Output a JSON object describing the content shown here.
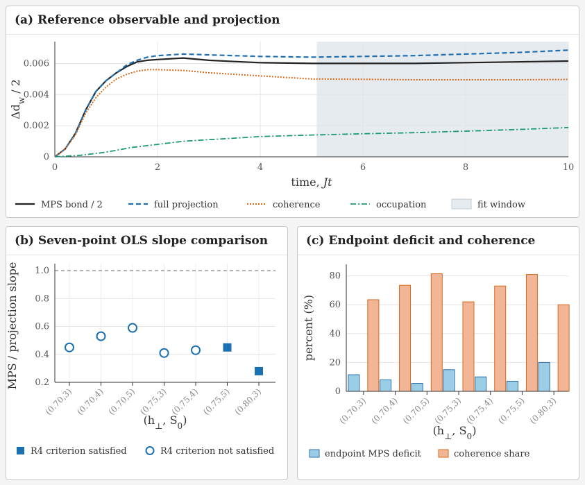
{
  "panels": {
    "a": {
      "title": "(a) Reference observable and projection"
    },
    "b": {
      "title": "(b) Seven-point OLS slope comparison"
    },
    "c": {
      "title": "(c) Endpoint deficit and coherence"
    }
  },
  "colors": {
    "mps": "#222222",
    "full": "#1f6fb0",
    "coherence": "#d46a1c",
    "occupation": "#1a9a72",
    "fit": "#e6ebef",
    "marker": "#1a70b0",
    "bar_blue": "#9ccde6",
    "bar_blue_edge": "#2c6fa6",
    "bar_orange": "#f2b596",
    "bar_orange_edge": "#d46a1c"
  },
  "chart_data": [
    {
      "type": "line",
      "title": "",
      "xlabel": "time, Jt",
      "ylabel": "Δd_w / 2",
      "xlim": [
        0,
        10
      ],
      "ylim": [
        0,
        0.0074
      ],
      "xticks": [
        "0",
        "2",
        "4",
        "6",
        "8",
        "10"
      ],
      "yticks": [
        "0",
        "0.002",
        "0.004",
        "0.006"
      ],
      "fit_window": [
        5.1,
        10
      ],
      "legend": [
        "MPS bond / 2",
        "full projection",
        "coherence",
        "occupation",
        "fit window"
      ],
      "series": [
        {
          "name": "MPS bond / 2",
          "x": [
            0,
            0.2,
            0.4,
            0.6,
            0.8,
            1.0,
            1.2,
            1.4,
            1.6,
            1.8,
            2.0,
            2.5,
            3.0,
            3.5,
            4.0,
            5.0,
            6.0,
            7.0,
            8.0,
            9.0,
            10.0
          ],
          "y": [
            0,
            0.0005,
            0.0015,
            0.003,
            0.0042,
            0.0049,
            0.0054,
            0.0058,
            0.0061,
            0.0062,
            0.00625,
            0.00635,
            0.0062,
            0.00612,
            0.00605,
            0.006,
            0.006,
            0.006,
            0.00605,
            0.0061,
            0.00615
          ]
        },
        {
          "name": "full projection",
          "x": [
            0,
            0.2,
            0.4,
            0.6,
            0.8,
            1.0,
            1.2,
            1.4,
            1.6,
            1.8,
            2.0,
            2.5,
            3.0,
            3.5,
            4.0,
            5.0,
            6.0,
            7.0,
            8.0,
            9.0,
            10.0
          ],
          "y": [
            0,
            0.0005,
            0.0015,
            0.003,
            0.0042,
            0.0049,
            0.0054,
            0.0059,
            0.0062,
            0.0064,
            0.0065,
            0.0066,
            0.00655,
            0.0065,
            0.00645,
            0.0064,
            0.00645,
            0.0065,
            0.0066,
            0.0067,
            0.00685
          ]
        },
        {
          "name": "coherence",
          "x": [
            0,
            0.2,
            0.4,
            0.6,
            0.8,
            1.0,
            1.2,
            1.4,
            1.6,
            1.8,
            2.0,
            2.5,
            3.0,
            3.5,
            4.0,
            5.0,
            6.0,
            7.0,
            8.0,
            9.0,
            10.0
          ],
          "y": [
            0,
            0.0005,
            0.0014,
            0.0028,
            0.0038,
            0.0045,
            0.005,
            0.0053,
            0.0055,
            0.0056,
            0.0056,
            0.00555,
            0.0054,
            0.0053,
            0.0052,
            0.005,
            0.00498,
            0.00495,
            0.00495,
            0.00495,
            0.00497
          ]
        },
        {
          "name": "occupation",
          "x": [
            0,
            0.5,
            1.0,
            1.5,
            2.0,
            2.5,
            3.0,
            3.5,
            4.0,
            5.0,
            6.0,
            7.0,
            8.0,
            9.0,
            10.0
          ],
          "y": [
            0,
            0.0001,
            0.0003,
            0.0006,
            0.0008,
            0.001,
            0.0011,
            0.0012,
            0.0013,
            0.0014,
            0.00148,
            0.00155,
            0.00165,
            0.00175,
            0.00188
          ]
        }
      ]
    },
    {
      "type": "scatter",
      "title": "",
      "xlabel": "(h_⊥, S_0)",
      "ylabel": "MPS / projection slope",
      "categories": [
        "(0.70,3)",
        "(0.70,4)",
        "(0.70,5)",
        "(0.75,3)",
        "(0.75,4)",
        "(0.75,5)",
        "(0.80,3)"
      ],
      "values": [
        0.45,
        0.53,
        0.59,
        0.41,
        0.43,
        0.45,
        0.28
      ],
      "satisfied": [
        false,
        false,
        false,
        false,
        false,
        true,
        true
      ],
      "reference_line": 1.0,
      "ylim": [
        0.2,
        1.05
      ],
      "yticks": [
        "0.2",
        "0.4",
        "0.6",
        "0.8",
        "1.0"
      ],
      "legend": [
        "R4 criterion satisfied",
        "R4 criterion not satisfied"
      ]
    },
    {
      "type": "bar",
      "title": "",
      "xlabel": "(h_⊥, S_0)",
      "ylabel": "percent (%)",
      "categories": [
        "(0.70,3)",
        "(0.70,4)",
        "(0.70,5)",
        "(0.75,3)",
        "(0.75,4)",
        "(0.75,5)",
        "(0.80,3)"
      ],
      "series": [
        {
          "name": "endpoint MPS deficit",
          "values": [
            11.5,
            8,
            5.5,
            15,
            10,
            7,
            20
          ]
        },
        {
          "name": "coherence share",
          "values": [
            63.5,
            73.5,
            81.5,
            62,
            73,
            81,
            60
          ]
        }
      ],
      "ylim": [
        0,
        88
      ],
      "yticks": [
        "0",
        "20",
        "40",
        "60",
        "80"
      ]
    }
  ]
}
